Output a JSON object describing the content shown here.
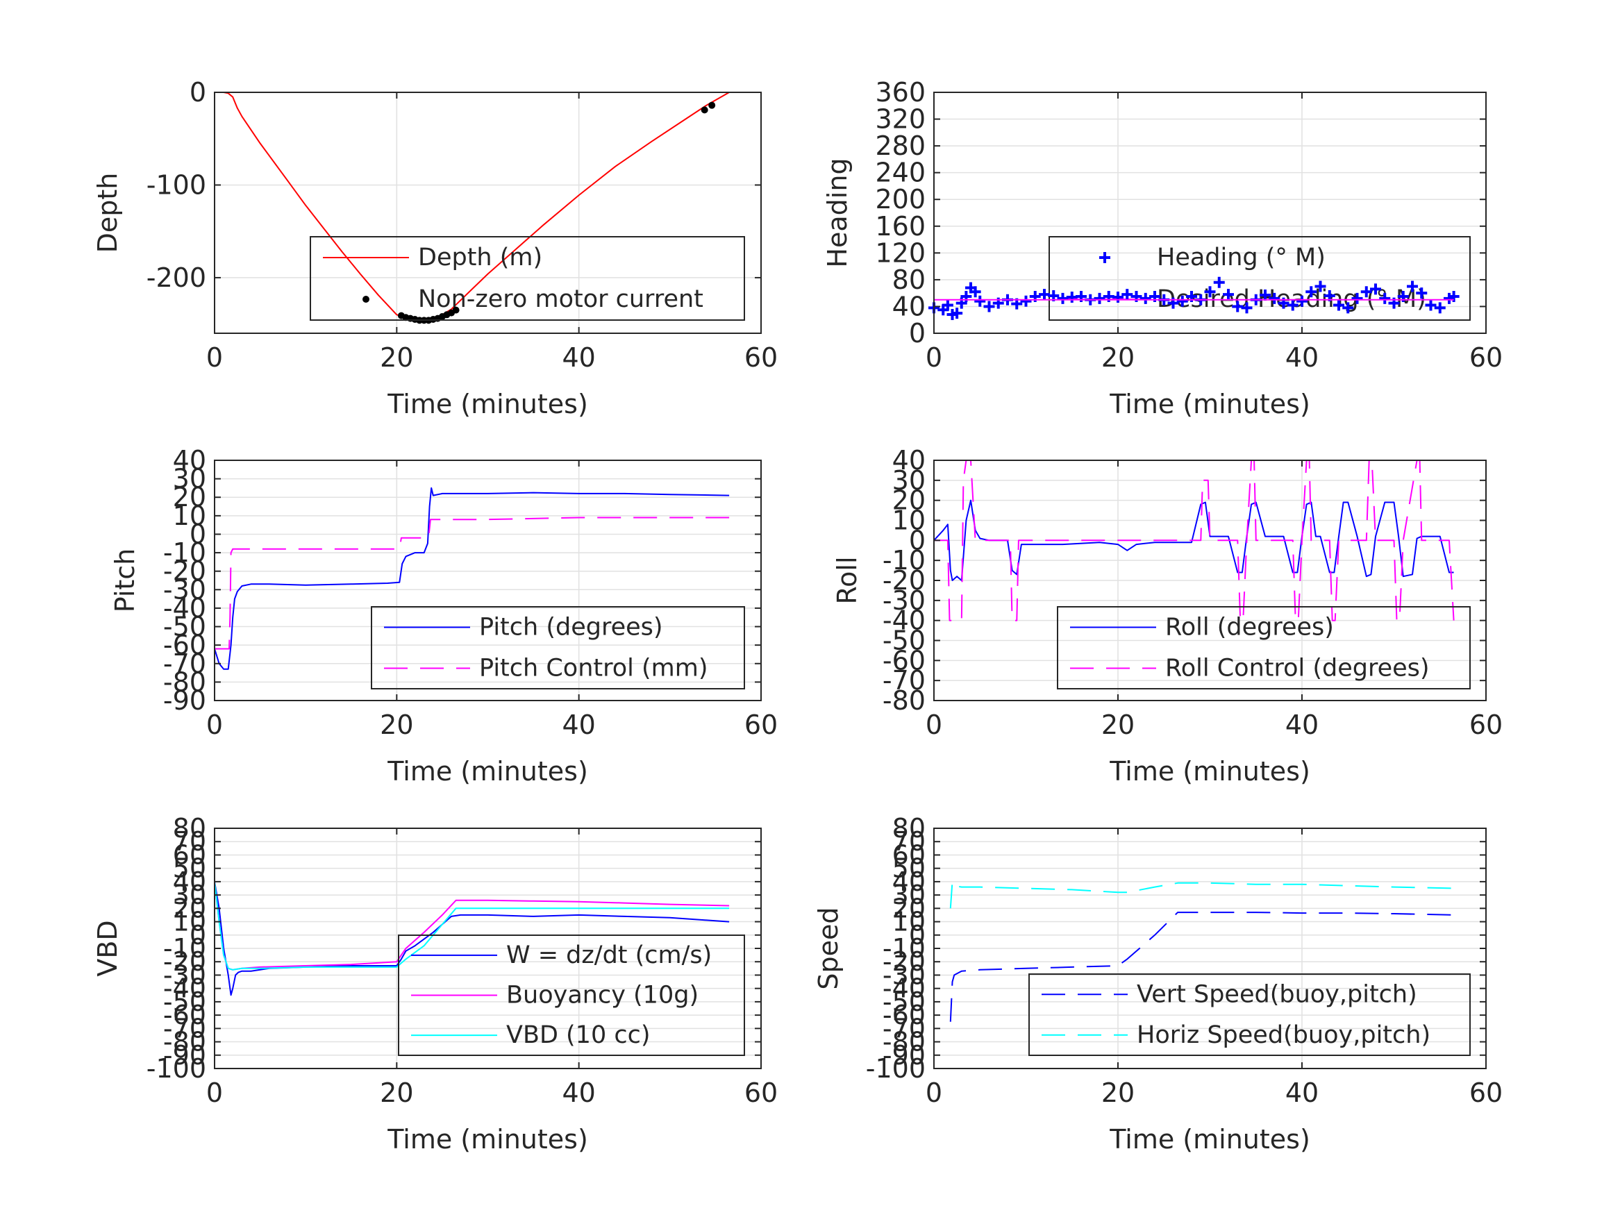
{
  "chart_data": [
    {
      "id": "depth",
      "type": "line",
      "xlabel": "Time (minutes)",
      "ylabel": "Depth",
      "xlim": [
        0,
        60
      ],
      "ylim": [
        -260,
        0
      ],
      "xticks": [
        0,
        20,
        40,
        60
      ],
      "yticks": [
        -200,
        -100,
        0
      ],
      "ytick_labels": [
        "-200",
        "-100",
        "0"
      ],
      "grid": true,
      "legend_position": "bottom-right",
      "series": [
        {
          "name": "Depth (m)",
          "style": "solid",
          "color": "#ff0000",
          "marker": "none",
          "x": [
            0,
            1,
            1.5,
            2,
            2.5,
            3,
            5,
            8,
            10,
            12,
            14,
            16,
            18,
            20,
            21,
            22,
            23,
            24,
            25,
            26,
            28,
            30,
            33,
            36,
            40,
            44,
            48,
            52,
            54,
            56.5
          ],
          "y": [
            0,
            0,
            -1,
            -5,
            -17,
            -26,
            -55,
            -95,
            -122,
            -147,
            -172,
            -196,
            -219,
            -240,
            -243,
            -245,
            -246,
            -244,
            -240,
            -234,
            -215,
            -196,
            -170,
            -144,
            -111,
            -80,
            -53,
            -27,
            -14,
            0
          ]
        },
        {
          "name": "Non-zero motor current",
          "style": "none",
          "color": "#000000",
          "marker": "dot",
          "x": [
            20.5,
            21,
            21.5,
            22,
            22.5,
            23,
            23.5,
            24,
            24.5,
            25,
            25.5,
            26,
            26.5,
            53.8,
            54.6
          ],
          "y": [
            -241,
            -243,
            -244,
            -245,
            -246,
            -246,
            -246,
            -245,
            -244,
            -242,
            -240,
            -238,
            -235,
            -19,
            -14
          ]
        }
      ]
    },
    {
      "id": "heading",
      "type": "line",
      "xlabel": "Time (minutes)",
      "ylabel": "Heading",
      "xlim": [
        0,
        60
      ],
      "ylim": [
        0,
        360
      ],
      "xticks": [
        0,
        20,
        40,
        60
      ],
      "yticks": [
        0,
        40,
        80,
        120,
        160,
        200,
        240,
        280,
        320,
        360
      ],
      "ytick_labels": [
        "0",
        "40",
        "80",
        "120",
        "160",
        "200",
        "240",
        "280",
        "320",
        "360"
      ],
      "grid": true,
      "legend_position": "bottom-right",
      "series": [
        {
          "name": "Heading (° M)",
          "style": "none",
          "color": "#0000ff",
          "marker": "plus",
          "x": [
            0,
            1,
            1.5,
            2,
            2.5,
            3,
            3.5,
            4,
            4.5,
            5,
            6,
            7,
            8,
            9,
            10,
            11,
            12,
            13,
            14,
            15,
            16,
            17,
            18,
            19,
            20,
            21,
            22,
            23,
            24,
            25,
            26,
            27,
            28,
            29,
            30,
            31,
            32,
            33,
            34,
            35,
            36,
            37,
            38,
            39,
            40,
            41,
            42,
            43,
            44,
            45,
            46,
            47,
            48,
            49,
            50,
            51,
            52,
            53,
            54,
            55,
            56,
            56.5
          ],
          "y": [
            38,
            35,
            42,
            28,
            30,
            45,
            55,
            68,
            62,
            48,
            40,
            45,
            50,
            44,
            48,
            55,
            58,
            56,
            52,
            54,
            55,
            50,
            52,
            55,
            54,
            58,
            55,
            52,
            55,
            50,
            45,
            48,
            55,
            50,
            62,
            76,
            58,
            40,
            38,
            50,
            57,
            52,
            45,
            42,
            48,
            62,
            70,
            56,
            42,
            38,
            52,
            62,
            66,
            52,
            45,
            55,
            70,
            60,
            42,
            38,
            52,
            55
          ]
        },
        {
          "name": "Desired Heading (° M)",
          "style": "solid",
          "color": "#ff00ff",
          "marker": "none",
          "x": [
            0,
            56.5
          ],
          "y": [
            50,
            50
          ]
        }
      ]
    },
    {
      "id": "pitch",
      "type": "line",
      "xlabel": "Time (minutes)",
      "ylabel": "Pitch",
      "xlim": [
        0,
        60
      ],
      "ylim": [
        -90,
        40
      ],
      "xticks": [
        0,
        20,
        40,
        60
      ],
      "yticks": [
        -90,
        -80,
        -70,
        -60,
        -50,
        -40,
        -30,
        -20,
        -10,
        0,
        10,
        20,
        30,
        40
      ],
      "ytick_labels": [
        "-90",
        "-80",
        "-70",
        "-60",
        "-50",
        "-40",
        "-30",
        "-20",
        "-10",
        "0",
        "10",
        "20",
        "30",
        "40"
      ],
      "grid": true,
      "legend_position": "bottom-right",
      "series": [
        {
          "name": "Pitch (degrees)",
          "style": "solid",
          "color": "#0000ff",
          "marker": "none",
          "x": [
            0,
            0.5,
            1,
            1.5,
            1.8,
            2.0,
            2.2,
            2.5,
            3,
            4,
            6,
            10,
            15,
            19,
            20.3,
            20.6,
            21,
            22,
            23,
            23.4,
            23.6,
            23.8,
            24,
            25,
            28,
            30,
            35,
            40,
            45,
            50,
            56.5
          ],
          "y": [
            -62,
            -70,
            -73,
            -73,
            -60,
            -45,
            -35,
            -31,
            -28,
            -27,
            -27,
            -27.5,
            -27,
            -26.5,
            -26,
            -16,
            -12,
            -10,
            -10,
            -5,
            15,
            25,
            21,
            22,
            22,
            22,
            22.5,
            22,
            22,
            21.5,
            21
          ]
        },
        {
          "name": "Pitch Control (mm)",
          "style": "dashed",
          "color": "#ff00ff",
          "marker": "none",
          "x": [
            0,
            1.6,
            1.7,
            1.8,
            2.0,
            2.5,
            10,
            20.3,
            20.5,
            21,
            23.5,
            23.7,
            24,
            30,
            40,
            50,
            56.5
          ],
          "y": [
            -62,
            -62,
            -45,
            -10,
            -8,
            -8,
            -8,
            -8,
            -2,
            -2,
            -2,
            8,
            8,
            8,
            9,
            9,
            9
          ]
        }
      ]
    },
    {
      "id": "roll",
      "type": "line",
      "xlabel": "Time (minutes)",
      "ylabel": "Roll",
      "xlim": [
        0,
        60
      ],
      "ylim": [
        -80,
        40
      ],
      "xticks": [
        0,
        20,
        40,
        60
      ],
      "yticks": [
        -80,
        -70,
        -60,
        -50,
        -40,
        -30,
        -20,
        -10,
        0,
        10,
        20,
        30,
        40
      ],
      "ytick_labels": [
        "-80",
        "-70",
        "-60",
        "-50",
        "-40",
        "-30",
        "-20",
        "-10",
        "0",
        "10",
        "20",
        "30",
        "40"
      ],
      "grid": true,
      "legend_position": "bottom-right",
      "series": [
        {
          "name": "Roll (degrees)",
          "style": "solid",
          "color": "#0000ff",
          "marker": "none",
          "x": [
            0,
            1,
            1.5,
            1.8,
            2.0,
            2.5,
            3.0,
            3.5,
            4.0,
            4.5,
            5,
            6,
            8,
            8.5,
            9,
            9.5,
            10,
            14,
            18,
            20,
            21,
            22,
            24,
            28,
            29,
            29.5,
            30,
            31,
            32,
            33,
            33.5,
            34,
            34.5,
            35,
            36,
            38,
            39,
            39.5,
            40,
            40.5,
            41,
            41.5,
            42,
            43,
            43.5,
            44,
            44.5,
            45,
            46,
            47,
            47.5,
            48,
            49,
            50,
            50.5,
            51,
            52,
            52.5,
            53,
            55,
            56,
            56.5
          ],
          "y": [
            0,
            5,
            8,
            -15,
            -20,
            -18,
            -20,
            10,
            20,
            5,
            1,
            0,
            0,
            -15,
            -17,
            -2,
            -2,
            -2,
            -1,
            -2,
            -5,
            -2,
            -1,
            -1,
            18,
            19,
            2,
            2,
            2,
            -16,
            -16,
            2,
            18,
            19,
            2,
            2,
            -16,
            -16,
            2,
            18,
            19,
            2,
            2,
            -16,
            -16,
            2,
            19,
            19,
            2,
            -18,
            -17,
            2,
            19,
            19,
            2,
            -18,
            -17,
            1,
            2,
            2,
            -16,
            -16
          ]
        },
        {
          "name": "Roll Control (degrees)",
          "style": "dashed",
          "color": "#ff00ff",
          "marker": "none",
          "x": [
            0,
            1.5,
            1.7,
            2.0,
            3.0,
            3.2,
            3.5,
            4.0,
            4.5,
            5,
            8.3,
            8.5,
            9.0,
            9.2,
            10,
            29,
            29.2,
            29.8,
            30,
            33,
            33.3,
            33.6,
            34,
            34.5,
            34.8,
            35,
            39,
            39.3,
            39.6,
            40,
            40.5,
            40.8,
            41,
            43,
            43.3,
            43.6,
            44,
            47,
            47.3,
            47.6,
            48,
            50,
            50.3,
            50.6,
            51,
            52.5,
            52.8,
            53,
            56,
            56.5
          ],
          "y": [
            0,
            0,
            -40,
            -40,
            -40,
            30,
            40,
            40,
            0,
            0,
            0,
            -40,
            -40,
            0,
            0,
            0,
            30,
            30,
            0,
            0,
            -40,
            -40,
            0,
            40,
            40,
            0,
            0,
            -40,
            -40,
            0,
            40,
            40,
            0,
            0,
            -40,
            -40,
            0,
            0,
            40,
            40,
            0,
            0,
            -40,
            -40,
            0,
            40,
            40,
            0,
            0,
            -40
          ]
        }
      ]
    },
    {
      "id": "vbd",
      "type": "line",
      "xlabel": "Time (minutes)",
      "ylabel": "VBD",
      "xlim": [
        0,
        60
      ],
      "ylim": [
        -100,
        80
      ],
      "xticks": [
        0,
        20,
        40,
        60
      ],
      "yticks": [
        -100,
        -90,
        -80,
        -70,
        -60,
        -50,
        -40,
        -30,
        -20,
        -10,
        0,
        10,
        20,
        30,
        40,
        50,
        60,
        70,
        80
      ],
      "ytick_labels": [
        "-100",
        "-90",
        "-80",
        "-70",
        "-60",
        "-50",
        "-40",
        "-30",
        "-20",
        "-10",
        "0",
        "10",
        "20",
        "30",
        "40",
        "50",
        "60",
        "70",
        "80"
      ],
      "grid": true,
      "legend_position": "bottom-right",
      "series": [
        {
          "name": "W = dz/dt (cm/s)",
          "style": "solid",
          "color": "#0000ff",
          "marker": "none",
          "x": [
            0,
            0.5,
            1,
            1.5,
            1.8,
            2.0,
            2.3,
            2.6,
            3.0,
            4,
            6,
            10,
            15,
            20,
            20.5,
            21,
            22,
            24,
            26,
            27,
            30,
            35,
            40,
            45,
            50,
            56.5
          ],
          "y": [
            40,
            20,
            -10,
            -30,
            -45,
            -40,
            -30,
            -28,
            -27,
            -27,
            -25,
            -24,
            -23,
            -23,
            -18,
            -12,
            -8,
            2,
            14,
            15,
            15,
            14,
            15,
            14,
            13,
            10
          ]
        },
        {
          "name": "Buoyancy (10g)",
          "style": "solid",
          "color": "#ff00ff",
          "marker": "none",
          "x": [
            0,
            0.5,
            1,
            1.5,
            2,
            3,
            5,
            10,
            15,
            20,
            21,
            23,
            25,
            26.5,
            27,
            30,
            35,
            40,
            45,
            50,
            56.5
          ],
          "y": [
            40,
            10,
            -15,
            -25,
            -26,
            -25,
            -24,
            -23,
            -22,
            -20,
            -10,
            2,
            15,
            26,
            26,
            26,
            25.5,
            25,
            24,
            23,
            22
          ]
        },
        {
          "name": "VBD (10 cc)",
          "style": "solid",
          "color": "#00ffff",
          "marker": "none",
          "x": [
            0,
            0.5,
            1,
            1.5,
            2,
            3,
            5,
            10,
            15,
            20,
            21,
            23,
            25,
            26.5,
            27,
            30,
            35,
            40,
            45,
            50,
            56.5
          ],
          "y": [
            40,
            10,
            -15,
            -25,
            -26,
            -25,
            -25,
            -24,
            -24,
            -24,
            -18,
            -8,
            8,
            20,
            20,
            20,
            20,
            20,
            20,
            20,
            20
          ]
        }
      ]
    },
    {
      "id": "speed",
      "type": "line",
      "xlabel": "Time (minutes)",
      "ylabel": "Speed",
      "xlim": [
        0,
        60
      ],
      "ylim": [
        -100,
        80
      ],
      "xticks": [
        0,
        20,
        40,
        60
      ],
      "yticks": [
        -100,
        -90,
        -80,
        -70,
        -60,
        -50,
        -40,
        -30,
        -20,
        -10,
        0,
        10,
        20,
        30,
        40,
        50,
        60,
        70,
        80
      ],
      "ytick_labels": [
        "-100",
        "-90",
        "-80",
        "-70",
        "-60",
        "-50",
        "-40",
        "-30",
        "-20",
        "-10",
        "0",
        "10",
        "20",
        "30",
        "40",
        "50",
        "60",
        "70",
        "80"
      ],
      "grid": true,
      "legend_position": "bottom-right",
      "series": [
        {
          "name": "Vert Speed(buoy,pitch)",
          "style": "dashed",
          "color": "#0000ff",
          "marker": "none",
          "x": [
            1.8,
            2.0,
            2.2,
            3,
            5,
            10,
            15,
            20,
            21,
            24,
            26.5,
            27,
            30,
            35,
            40,
            45,
            50,
            56.5
          ],
          "y": [
            -65,
            -35,
            -30,
            -27,
            -26,
            -25,
            -24,
            -23,
            -18,
            0,
            17,
            17,
            17,
            17,
            16.5,
            16.5,
            16,
            15
          ]
        },
        {
          "name": "Horiz Speed(buoy,pitch)",
          "style": "dashed",
          "color": "#00ffff",
          "marker": "none",
          "x": [
            1.8,
            2.0,
            2.2,
            3,
            5,
            10,
            15,
            20,
            21,
            24,
            26.5,
            27,
            30,
            35,
            40,
            45,
            50,
            56.5
          ],
          "y": [
            20,
            40,
            37,
            36,
            36,
            35,
            34,
            32,
            32,
            36,
            39,
            39,
            39,
            38,
            38,
            37,
            36,
            35
          ]
        }
      ]
    }
  ]
}
